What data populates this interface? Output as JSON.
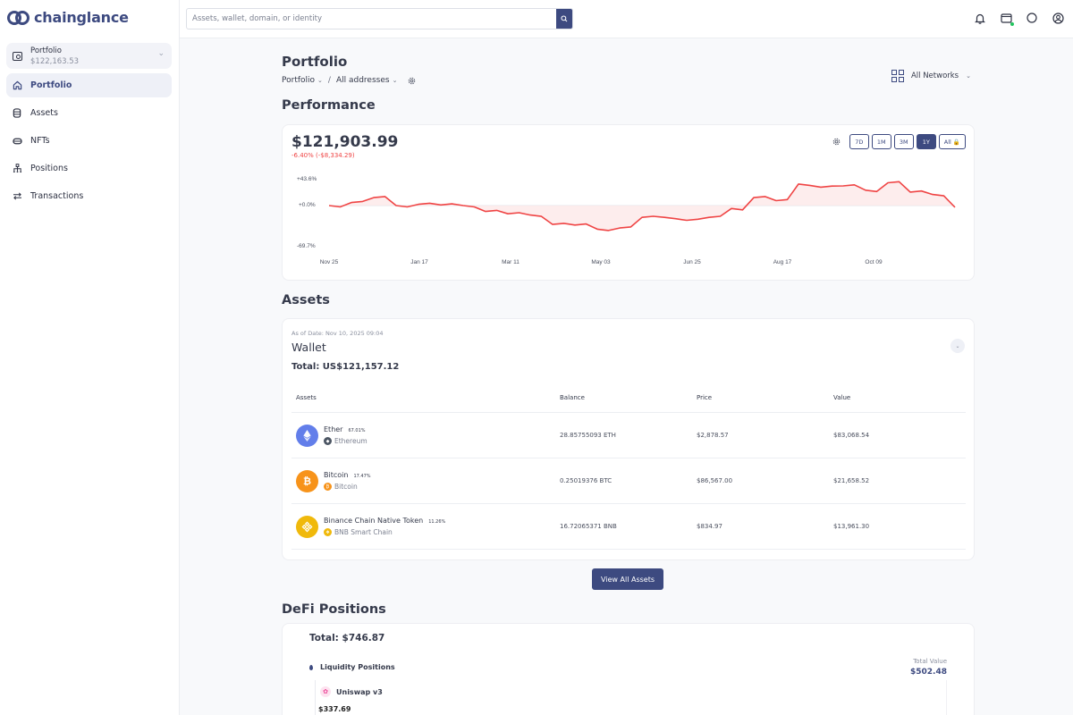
{
  "app": {
    "logo_text": "chainglance",
    "colors": {
      "brand": "#3d4a80",
      "negative": "#ef4444",
      "online": "#22c55e"
    }
  },
  "sidebar": {
    "portfolio_switch": {
      "title": "Portfolio",
      "value": "$122,163.53"
    },
    "items": [
      {
        "label": "Portfolio",
        "icon": "home-icon",
        "active": true
      },
      {
        "label": "Assets",
        "icon": "database-icon",
        "active": false
      },
      {
        "label": "NFTs",
        "icon": "nft-icon",
        "active": false
      },
      {
        "label": "Positions",
        "icon": "hierarchy-icon",
        "active": false
      },
      {
        "label": "Transactions",
        "icon": "swap-arrows-icon",
        "active": false
      }
    ]
  },
  "topbar": {
    "search": {
      "placeholder": "Assets, wallet, domain, or identity",
      "value": ""
    },
    "icons": [
      "bell-icon",
      "wallet-icon",
      "theme-toggle-icon",
      "user-circle-icon"
    ]
  },
  "page": {
    "title": "Portfolio",
    "breadcrumb": {
      "portfolio": "Portfolio",
      "addresses": "All addresses"
    },
    "networks_label": "All Networks"
  },
  "performance": {
    "section_title": "Performance",
    "value": "$121,903.99",
    "change": "-6.40% (-$8,334.29)",
    "ranges": [
      {
        "label": "7D",
        "active": false
      },
      {
        "label": "1M",
        "active": false
      },
      {
        "label": "3M",
        "active": false
      },
      {
        "label": "1Y",
        "active": true
      },
      {
        "label": "All 🔒",
        "active": false
      }
    ]
  },
  "chart_data": {
    "type": "area",
    "title": "Performance",
    "xlabel": "",
    "ylabel": "",
    "y_tick_labels": [
      "+43.6%",
      "+0.0%",
      "-69.7%"
    ],
    "ylim": [
      -69.7,
      43.6
    ],
    "x_tick_labels": [
      "Nov 25",
      "Jan 17",
      "Mar 11",
      "May 03",
      "Jun 25",
      "Aug 17",
      "Oct 09"
    ],
    "series": [
      {
        "name": "Portfolio change (%)",
        "color": "#ef4444",
        "x": [
          "Nov 25",
          "Dec 05",
          "Dec 15",
          "Dec 25",
          "Jan 05",
          "Jan 17",
          "Jan 30",
          "Feb 10",
          "Feb 25",
          "Mar 11",
          "Mar 25",
          "Apr 10",
          "Apr 25",
          "May 03",
          "May 20",
          "Jun 05",
          "Jun 15",
          "Jun 25",
          "Jul 10",
          "Jul 25",
          "Aug 05",
          "Aug 17",
          "Sep 01",
          "Sep 15",
          "Sep 30",
          "Oct 09",
          "Oct 20",
          "Nov 01",
          "Nov 10"
        ],
        "values": [
          0,
          5,
          13,
          0,
          2,
          1,
          0,
          -10,
          -14,
          -16,
          -32,
          -33,
          -40,
          -38,
          -20,
          -20,
          -25,
          -20,
          -5,
          13,
          8,
          35,
          30,
          32,
          25,
          37,
          22,
          18,
          -3
        ]
      }
    ]
  },
  "assets": {
    "section_title": "Assets",
    "as_of": "As of Date: Nov 10, 2025 09:04",
    "wallet_title": "Wallet",
    "total": "Total: US$121,157.12",
    "columns": [
      "Assets",
      "Balance",
      "Price",
      "Value"
    ],
    "rows": [
      {
        "name": "Ether",
        "pct": "67.01%",
        "chain": "Ethereum",
        "balance": "28.85755093 ETH",
        "price": "$2,878.57",
        "value": "$83,068.54",
        "coin_color": "#627eea",
        "chain_color": "#4b5563",
        "glyph": "◆"
      },
      {
        "name": "Bitcoin",
        "pct": "17.47%",
        "chain": "Bitcoin",
        "balance": "0.25019376 BTC",
        "price": "$86,567.00",
        "value": "$21,658.52",
        "coin_color": "#f7931a",
        "chain_color": "#f7931a",
        "glyph": "₿"
      },
      {
        "name": "Binance Chain Native Token",
        "pct": "11.26%",
        "chain": "BNB Smart Chain",
        "balance": "16.72065371 BNB",
        "price": "$834.97",
        "value": "$13,961.30",
        "coin_color": "#f0b90b",
        "chain_color": "#f0b90b",
        "glyph": "❖"
      }
    ],
    "view_all_label": "View All Assets"
  },
  "defi": {
    "section_title": "DeFi Positions",
    "total": "Total: $746.87",
    "liquidity_label": "Liquidity Positions",
    "total_value_label": "Total Value",
    "total_value": "$502.48",
    "protocol_name": "Uniswap v3",
    "protocol_value": "$337.69"
  }
}
